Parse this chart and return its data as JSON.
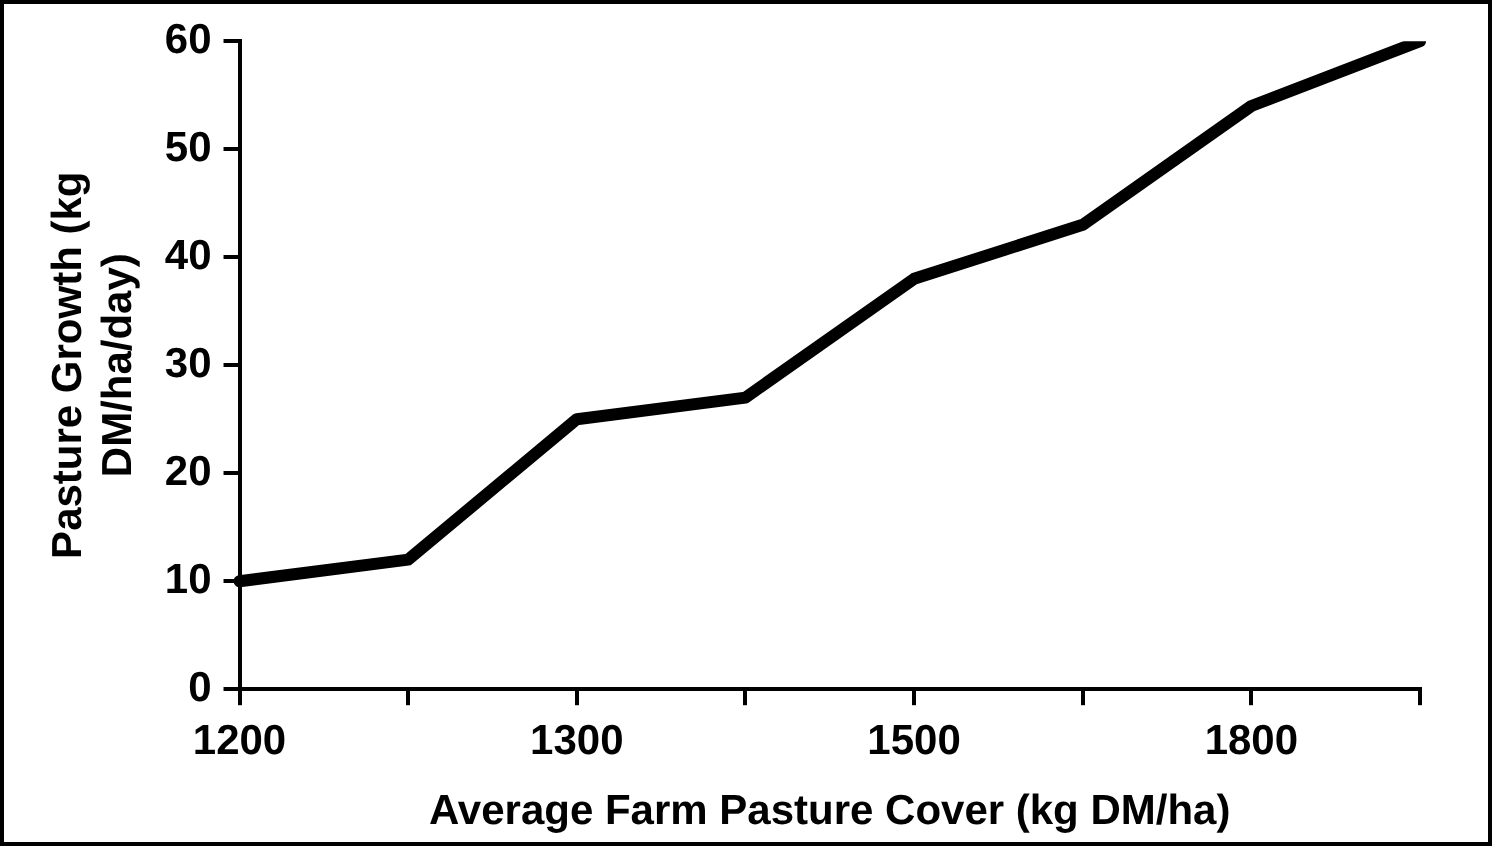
{
  "chart_data": {
    "type": "line",
    "xlabel": "Average Farm Pasture Cover (kg DM/ha)",
    "ylabel": "Pasture Growth (kg DM/ha/day)",
    "categories": [
      "1200",
      null,
      "1300",
      null,
      "1500",
      null,
      "1800",
      null
    ],
    "series": [
      {
        "color": "#000000",
        "values": [
          10,
          12,
          25,
          27,
          38,
          43,
          54,
          60
        ]
      }
    ],
    "ylim": [
      0,
      60
    ],
    "yticks": [
      0,
      10,
      20,
      30,
      40,
      50,
      60
    ],
    "grid": false,
    "legend": false,
    "marker": "none",
    "line_style": "solid"
  }
}
